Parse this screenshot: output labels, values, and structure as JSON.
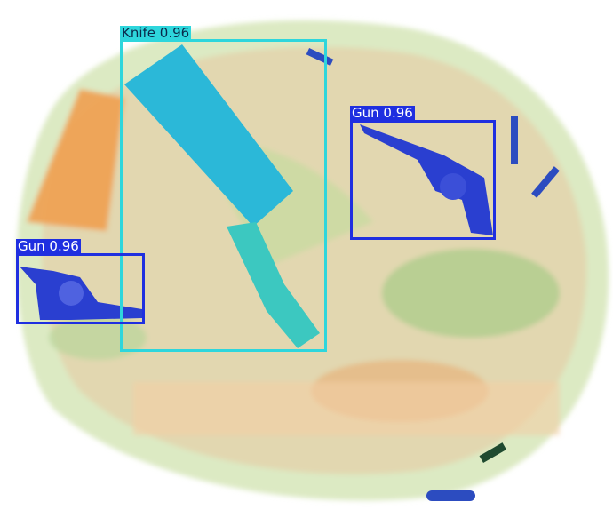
{
  "image": {
    "subject": "x-ray-baggage-scan"
  },
  "colors": {
    "knife": "#2ed6dc",
    "gun": "#1f2fe0",
    "label_text": "#ffffff"
  },
  "detections": [
    {
      "label": "Knife 0.96",
      "class": "Knife",
      "confidence": 0.96
    },
    {
      "label": "Gun 0.96",
      "class": "Gun",
      "confidence": 0.96
    },
    {
      "label": "Gun 0.96",
      "class": "Gun",
      "confidence": 0.96
    }
  ]
}
